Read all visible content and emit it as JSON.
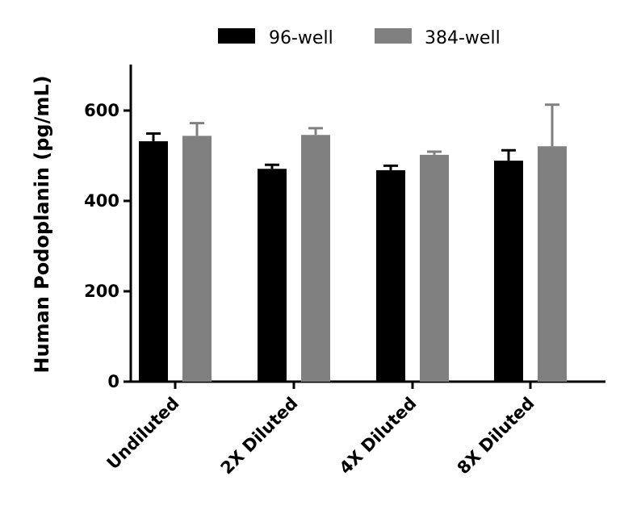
{
  "chart_data": {
    "type": "bar",
    "ylabel": "Human Podoplanin (pg/mL)",
    "xlabel": "",
    "categories": [
      "Undiluted",
      "2X Diluted",
      "4X Diluted",
      "8X Diluted"
    ],
    "ylim": [
      0,
      700
    ],
    "yticks": [
      0,
      200,
      400,
      600
    ],
    "legend_position": "top",
    "series": [
      {
        "name": "96-well",
        "color": "#000000",
        "values": [
          532,
          471,
          468,
          489
        ],
        "errors": [
          17,
          9,
          10,
          23
        ]
      },
      {
        "name": "384-well",
        "color": "#808080",
        "values": [
          544,
          546,
          502,
          521
        ],
        "errors": [
          28,
          15,
          7,
          92
        ]
      }
    ]
  }
}
